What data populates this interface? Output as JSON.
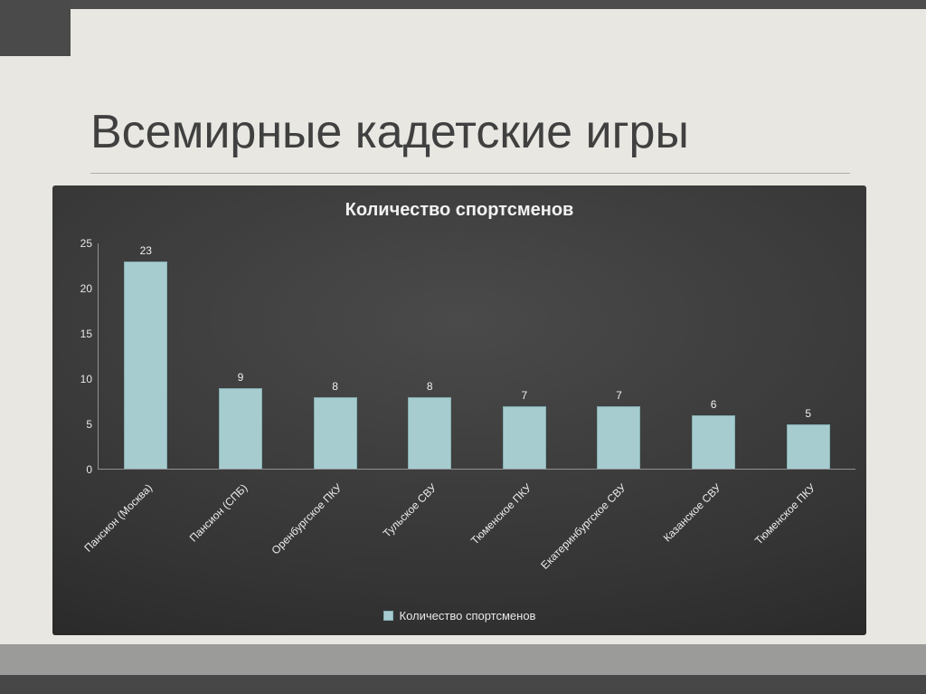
{
  "slide": {
    "title": "Всемирные кадетские игры"
  },
  "colors": {
    "slide_background": "#e8e7e1",
    "frame_dark": "#4a4a4a",
    "frame_mid": "#9b9b99",
    "chart_background_dark": "#1d1d1d",
    "chart_background_light": "#4a4a4a",
    "bar_fill": "#a6ccd0",
    "axis": "#919191",
    "chart_text": "#f0f0f0",
    "title_text": "#404040"
  },
  "chart_data": {
    "type": "bar",
    "title": "Количество спортсменов",
    "categories": [
      "Пансион (Москва)",
      "Пансион (СПБ)",
      "Оренбургское ПКУ",
      "Тульское СВУ",
      "Тюменское ПКУ",
      "Екатеринбургское СВУ",
      "Казанское СВУ",
      "Тюменское ПКУ"
    ],
    "values": [
      23,
      9,
      8,
      8,
      7,
      7,
      6,
      5
    ],
    "xlabel": "",
    "ylabel": "",
    "ylim": [
      0,
      25
    ],
    "yticks": [
      0,
      5,
      10,
      15,
      20,
      25
    ],
    "grid": false,
    "legend": "Количество спортсменов",
    "legend_position": "bottom",
    "bar_color": "#a6ccd0"
  }
}
